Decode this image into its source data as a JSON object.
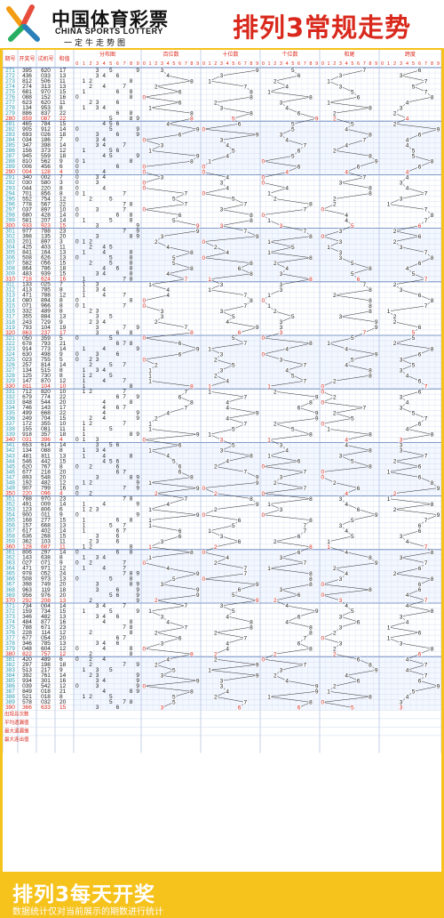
{
  "header": {
    "brand_cn": "中国体育彩票",
    "brand_en": "CHINA SPORTS LOTTERY",
    "slogan": "一定牛走势图",
    "title": "排列3常规走势"
  },
  "footer": {
    "title": "排列3每天开奖",
    "note": "数据统计仅对当前展示的期数进行统计"
  },
  "colors": {
    "background": "#f6c21c",
    "accent_red": "#d9281c",
    "grid_blue": "#cfd9ec",
    "issue_cyan": "#2a9db2"
  },
  "chart_data": {
    "type": "table",
    "columns": [
      "期号",
      "开奖号",
      "试机号",
      "和值",
      "分布图",
      "百位数",
      "十位数",
      "个位数",
      "和尾",
      "跨度"
    ],
    "digit_header": [
      "0",
      "1",
      "2",
      "3",
      "4",
      "5",
      "6",
      "7",
      "8",
      "9"
    ],
    "rows": [
      [
        "271",
        "395",
        "620",
        "17"
      ],
      [
        "272",
        "436",
        "033",
        "13"
      ],
      [
        "273",
        "812",
        "506",
        "11"
      ],
      [
        "274",
        "274",
        "313",
        "13"
      ],
      [
        "275",
        "681",
        "970",
        "15"
      ],
      [
        "276",
        "088",
        "152",
        "16"
      ],
      [
        "277",
        "623",
        "620",
        "11"
      ],
      [
        "278",
        "134",
        "953",
        "8"
      ],
      [
        "279",
        "886",
        "837",
        "22"
      ],
      [
        "280",
        "859",
        "087",
        "22"
      ],
      [
        "281",
        "465",
        "784",
        "15"
      ],
      [
        "282",
        "905",
        "912",
        "14"
      ],
      [
        "283",
        "693",
        "026",
        "18"
      ],
      [
        "284",
        "034",
        "186",
        "7"
      ],
      [
        "285",
        "347",
        "398",
        "14"
      ],
      [
        "286",
        "156",
        "373",
        "12"
      ],
      [
        "287",
        "945",
        "559",
        "18"
      ],
      [
        "288",
        "810",
        "562",
        "9"
      ],
      [
        "289",
        "006",
        "456",
        "6"
      ],
      [
        "290",
        "004",
        "128",
        "4"
      ],
      [
        "291",
        "340",
        "002",
        "7"
      ],
      [
        "292",
        "030",
        "580",
        "3"
      ],
      [
        "293",
        "044",
        "220",
        "8"
      ],
      [
        "294",
        "701",
        "856",
        "8"
      ],
      [
        "295",
        "552",
        "754",
        "12"
      ],
      [
        "296",
        "778",
        "567",
        "22"
      ],
      [
        "297",
        "037",
        "897",
        "10"
      ],
      [
        "298",
        "680",
        "428",
        "14"
      ],
      [
        "299",
        "581",
        "207",
        "14"
      ],
      [
        "300",
        "933",
        "923",
        "15"
      ],
      [
        "301",
        "977",
        "788",
        "23"
      ],
      [
        "302",
        "398",
        "135",
        "20"
      ],
      [
        "303",
        "201",
        "897",
        "3"
      ],
      [
        "304",
        "425",
        "403",
        "11"
      ],
      [
        "305",
        "841",
        "164",
        "13"
      ],
      [
        "306",
        "508",
        "626",
        "13"
      ],
      [
        "307",
        "582",
        "056",
        "15"
      ],
      [
        "308",
        "864",
        "786",
        "18"
      ],
      [
        "309",
        "483",
        "939",
        "15"
      ],
      [
        "310",
        "718",
        "624",
        "16"
      ],
      [
        "311",
        "133",
        "025",
        "7"
      ],
      [
        "312",
        "413",
        "785",
        "8"
      ],
      [
        "313",
        "471",
        "788",
        "12"
      ],
      [
        "314",
        "080",
        "894",
        "8"
      ],
      [
        "315",
        "071",
        "966",
        "8"
      ],
      [
        "316",
        "332",
        "489",
        "8"
      ],
      [
        "317",
        "355",
        "884",
        "13"
      ],
      [
        "318",
        "243",
        "729",
        "9"
      ],
      [
        "319",
        "793",
        "104",
        "19"
      ],
      [
        "320",
        "863",
        "237",
        "17"
      ],
      [
        "321",
        "050",
        "359",
        "5"
      ],
      [
        "322",
        "678",
        "793",
        "21"
      ],
      [
        "323",
        "914",
        "773",
        "14"
      ],
      [
        "324",
        "630",
        "498",
        "9"
      ],
      [
        "325",
        "023",
        "755",
        "5"
      ],
      [
        "326",
        "257",
        "814",
        "14"
      ],
      [
        "327",
        "134",
        "515",
        "8"
      ],
      [
        "328",
        "125",
        "730",
        "8"
      ],
      [
        "329",
        "147",
        "870",
        "12"
      ],
      [
        "330",
        "811",
        "104",
        "10"
      ],
      [
        "331",
        "712",
        "820",
        "10"
      ],
      [
        "332",
        "679",
        "774",
        "22"
      ],
      [
        "333",
        "848",
        "544",
        "20"
      ],
      [
        "334",
        "746",
        "143",
        "17"
      ],
      [
        "335",
        "499",
        "668",
        "22"
      ],
      [
        "336",
        "249",
        "704",
        "15"
      ],
      [
        "337",
        "172",
        "355",
        "10"
      ],
      [
        "338",
        "155",
        "081",
        "11"
      ],
      [
        "339",
        "918",
        "357",
        "18"
      ],
      [
        "340",
        "031",
        "396",
        "4"
      ],
      [
        "341",
        "653",
        "614",
        "14"
      ],
      [
        "342",
        "134",
        "088",
        "8"
      ],
      [
        "343",
        "481",
        "811",
        "13"
      ],
      [
        "344",
        "546",
        "442",
        "15"
      ],
      [
        "345",
        "620",
        "767",
        "8"
      ],
      [
        "346",
        "677",
        "218",
        "20"
      ],
      [
        "347",
        "893",
        "548",
        "20"
      ],
      [
        "348",
        "192",
        "482",
        "12"
      ],
      [
        "349",
        "907",
        "799",
        "16"
      ],
      [
        "350",
        "220",
        "096",
        "4"
      ],
      [
        "351",
        "788",
        "970",
        "23"
      ],
      [
        "352",
        "491",
        "009",
        "14"
      ],
      [
        "353",
        "123",
        "806",
        "6"
      ],
      [
        "354",
        "900",
        "011",
        "9"
      ],
      [
        "355",
        "168",
        "277",
        "15"
      ],
      [
        "356",
        "157",
        "668",
        "13"
      ],
      [
        "357",
        "617",
        "402",
        "14"
      ],
      [
        "358",
        "636",
        "268",
        "15"
      ],
      [
        "359",
        "362",
        "103",
        "11"
      ],
      [
        "360",
        "128",
        "687",
        "11"
      ],
      [
        "361",
        "806",
        "297",
        "14"
      ],
      [
        "362",
        "143",
        "638",
        "8"
      ],
      [
        "363",
        "027",
        "071",
        "9"
      ],
      [
        "364",
        "471",
        "971",
        "12"
      ],
      [
        "365",
        "978",
        "052",
        "24"
      ],
      [
        "366",
        "508",
        "973",
        "13"
      ],
      [
        "367",
        "398",
        "749",
        "20"
      ],
      [
        "368",
        "963",
        "119",
        "18"
      ],
      [
        "369",
        "956",
        "976",
        "20"
      ],
      [
        "370",
        "292",
        "208",
        "13"
      ],
      [
        "371",
        "734",
        "004",
        "14"
      ],
      [
        "372",
        "159",
        "734",
        "15"
      ],
      [
        "373",
        "346",
        "482",
        "13"
      ],
      [
        "374",
        "484",
        "877",
        "16"
      ],
      [
        "375",
        "788",
        "671",
        "23"
      ],
      [
        "376",
        "228",
        "114",
        "12"
      ],
      [
        "377",
        "677",
        "054",
        "20"
      ],
      [
        "378",
        "346",
        "785",
        "13"
      ],
      [
        "379",
        "048",
        "604",
        "12"
      ],
      [
        "380",
        "822",
        "757",
        "12"
      ],
      [
        "381",
        "420",
        "489",
        "6"
      ],
      [
        "382",
        "297",
        "198",
        "18"
      ],
      [
        "383",
        "513",
        "217",
        "9"
      ],
      [
        "384",
        "392",
        "761",
        "14"
      ],
      [
        "385",
        "934",
        "301",
        "16"
      ],
      [
        "386",
        "039",
        "542",
        "12"
      ],
      [
        "387",
        "849",
        "018",
        "21"
      ],
      [
        "388",
        "521",
        "018",
        "8"
      ],
      [
        "389",
        "578",
        "032",
        "20"
      ],
      [
        "390",
        "366",
        "633",
        "15"
      ]
    ],
    "stats_labels": [
      "出现总次数",
      "平均遗漏值",
      "最大遗漏值",
      "最大连出值"
    ]
  }
}
